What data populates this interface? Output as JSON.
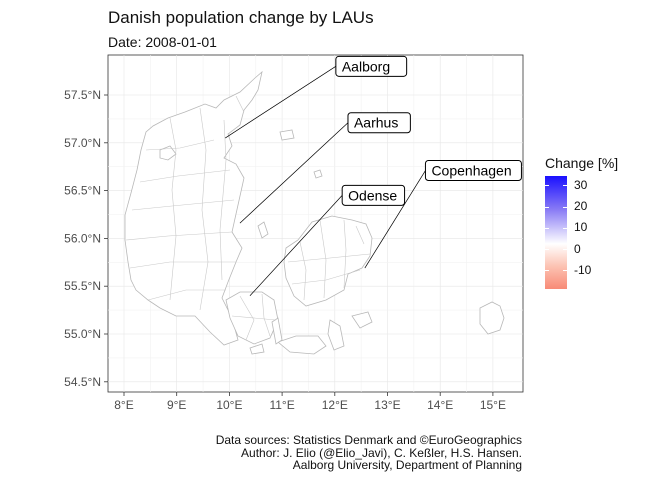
{
  "title": "Danish population change by LAUs",
  "subtitle": "Date: 2008-01-01",
  "map": {
    "x_ticks": [
      "8°E",
      "9°E",
      "10°E",
      "11°E",
      "12°E",
      "13°E",
      "14°E",
      "15°E"
    ],
    "y_ticks": [
      "57.5°N",
      "57.0°N",
      "56.5°N",
      "56.0°N",
      "55.5°N",
      "55.0°N",
      "54.5°N"
    ],
    "cities": [
      {
        "name": "Aalborg",
        "lon": 9.92,
        "lat": 57.05
      },
      {
        "name": "Aarhus",
        "lon": 10.2,
        "lat": 56.16
      },
      {
        "name": "Odense",
        "lon": 10.39,
        "lat": 55.4
      },
      {
        "name": "Copenhagen",
        "lon": 12.57,
        "lat": 55.69
      }
    ]
  },
  "legend": {
    "title": "Change [%]",
    "labels": [
      "30",
      "20",
      "10",
      "0",
      "-10"
    ],
    "colors": {
      "high": "#1a10ff",
      "mid": "#ffffff",
      "low": "#f88a76"
    }
  },
  "caption": {
    "line1": "Data sources: Statistics Denmark and ©EuroGeographics",
    "line2": "Author: J. Elio (@Elio_Javi), C. Keßler, H.S. Hansen.",
    "line3": "Aalborg University, Department of Planning"
  }
}
